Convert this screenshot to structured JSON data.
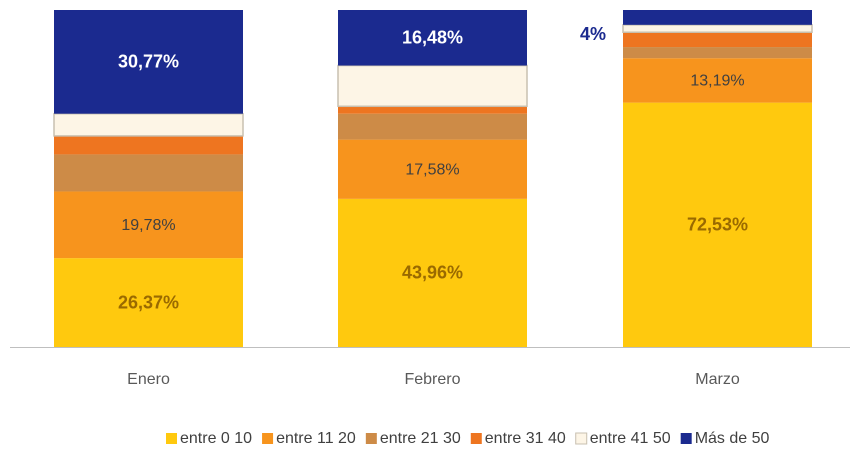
{
  "chart_data": {
    "type": "stacked_bar",
    "categories": [
      "Enero",
      "Febrero",
      "Marzo"
    ],
    "series": [
      {
        "name": "entre 0 10",
        "color": "#ffc90e",
        "values": [
          26.37,
          43.96,
          72.53
        ],
        "value_labels": [
          "26,37%",
          "43,96%",
          "72,53%"
        ]
      },
      {
        "name": "entre 11 20",
        "color": "#f7941d",
        "values": [
          19.78,
          17.58,
          13.19
        ],
        "value_labels": [
          "19,78%",
          "17,58%",
          "13,19%"
        ]
      },
      {
        "name": "entre 21 30",
        "color": "#cd8b47",
        "values": [
          10.99,
          7.69,
          3.3
        ],
        "value_labels": [
          null,
          null,
          null
        ]
      },
      {
        "name": "entre 31 40",
        "color": "#ee7520",
        "values": [
          5.49,
          2.2,
          4.4
        ],
        "value_labels": [
          null,
          null,
          null
        ]
      },
      {
        "name": "entre 41 50",
        "color": "#fdf5e6",
        "values": [
          6.59,
          12.09,
          2.2
        ],
        "value_labels": [
          null,
          null,
          null
        ]
      },
      {
        "name": "Más de 50",
        "color": "#1b2a8f",
        "values": [
          30.77,
          16.48,
          4.4
        ],
        "value_labels": [
          "30,77%",
          "16,48%",
          "4%"
        ]
      }
    ]
  }
}
